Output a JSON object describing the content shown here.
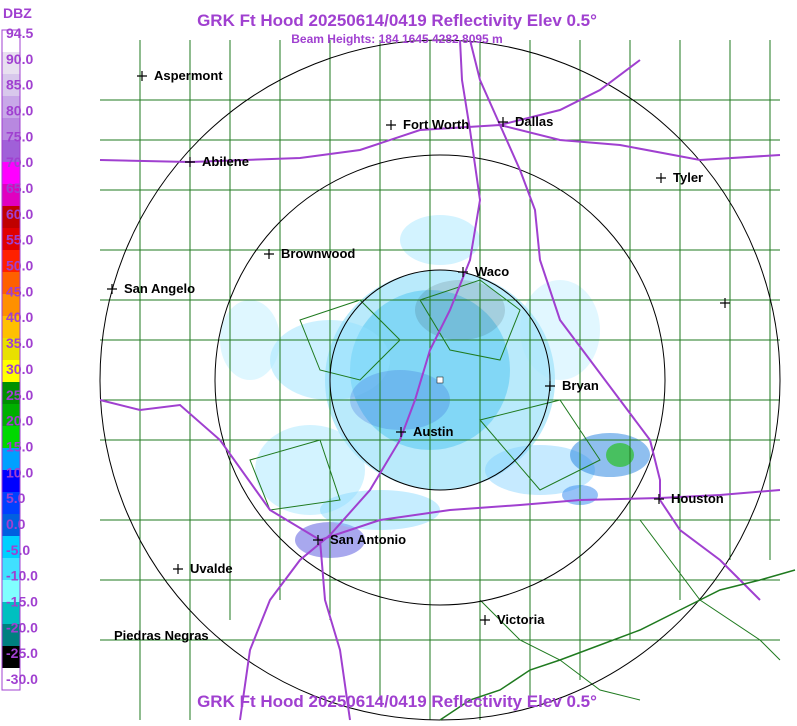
{
  "header": {
    "title": "GRK Ft Hood 20250614/0419 Reflectivity Elev 0.5°",
    "subtitle": "Beam Heights: 184 1645 4282 8095 m",
    "footer_title": "GRK Ft Hood 20250614/0419 Reflectivity Elev 0.5°"
  },
  "legend": {
    "unit": "DBZ",
    "labels": [
      "94.5",
      "90.0",
      "85.0",
      "80.0",
      "75.0",
      "70.0",
      "65.0",
      "60.0",
      "55.0",
      "50.0",
      "45.0",
      "40.0",
      "35.0",
      "30.0",
      "25.0",
      "20.0",
      "15.0",
      "10.0",
      "5.0",
      "0.0",
      "-5.0",
      "-10.0",
      "-15.0",
      "-20.0",
      "-25.0",
      "-30.0"
    ],
    "colors": [
      "#ffffff",
      "#e8e0f0",
      "#d8c8ec",
      "#c8a8e8",
      "#b888e0",
      "#a060d8",
      "#ff00ff",
      "#e000c0",
      "#c00000",
      "#e00000",
      "#ff2000",
      "#ff6000",
      "#ff9000",
      "#ffc000",
      "#e8e000",
      "#ffff00",
      "#009000",
      "#00b000",
      "#00d800",
      "#00a0ff",
      "#0000ff",
      "#0040ff",
      "#0060e0",
      "#00d0ff",
      "#40e0ff",
      "#80ffff",
      "#00c0c0",
      "#008080",
      "#000000",
      "#ffffff"
    ],
    "accent": "#a040d0"
  },
  "cities": [
    {
      "name": "Aspermont"
    },
    {
      "name": "Fort Worth"
    },
    {
      "name": "Dallas"
    },
    {
      "name": "Abilene"
    },
    {
      "name": "Tyler"
    },
    {
      "name": "Brownwood"
    },
    {
      "name": "Waco"
    },
    {
      "name": "San Angelo"
    },
    {
      "name": "Bryan"
    },
    {
      "name": "Austin"
    },
    {
      "name": "Houston"
    },
    {
      "name": "San Antonio"
    },
    {
      "name": "Uvalde"
    },
    {
      "name": "Victoria"
    },
    {
      "name": "Piedras Negras"
    }
  ],
  "colors": {
    "county_lines": "#1f7a1f",
    "highways": "#a040d0",
    "range_rings": "#000000",
    "echo_light": "#40c8ff",
    "echo_mid": "#0070e0",
    "echo_strong": "#20b020"
  }
}
